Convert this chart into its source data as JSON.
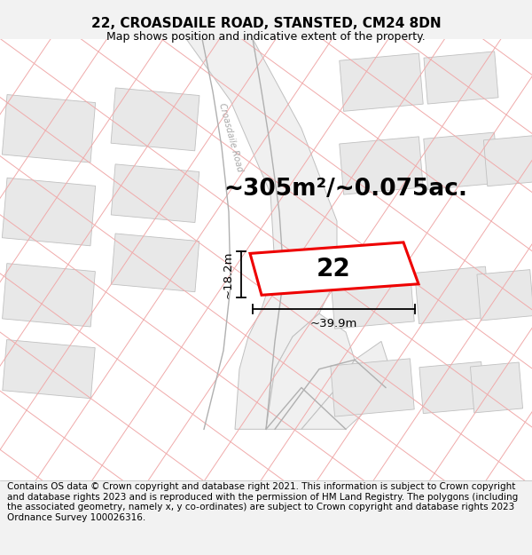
{
  "title_line1": "22, CROASDAILE ROAD, STANSTED, CM24 8DN",
  "title_line2": "Map shows position and indicative extent of the property.",
  "area_text": "~305m²/~0.075ac.",
  "number_label": "22",
  "dim_width": "~39.9m",
  "dim_height": "~18.2m",
  "road_label": "Croasdaile Road",
  "footer_text": "Contains OS data © Crown copyright and database right 2021. This information is subject to Crown copyright and database rights 2023 and is reproduced with the permission of HM Land Registry. The polygons (including the associated geometry, namely x, y co-ordinates) are subject to Crown copyright and database rights 2023 Ordnance Survey 100026316.",
  "bg_color": "#f2f2f2",
  "map_bg": "#ffffff",
  "block_fill": "#e8e8e8",
  "block_edge": "#c0c0c0",
  "plot_edge_color": "#ee0000",
  "pink_line_color": "#f0aaaa",
  "road_edge_color": "#c0c0c0",
  "road_fill": "#f0f0f0",
  "title_fontsize": 11,
  "subtitle_fontsize": 9,
  "area_fontsize": 19,
  "number_fontsize": 20,
  "footer_fontsize": 7.5,
  "dim_fontsize": 9.5
}
